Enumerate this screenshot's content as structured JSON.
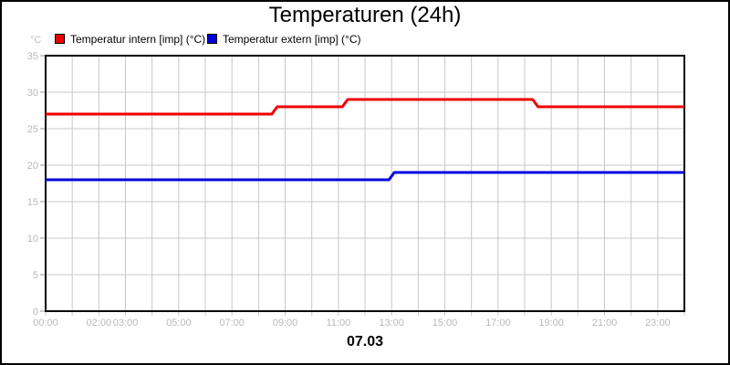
{
  "title": "Temperaturen (24h)",
  "y_axis_unit": "°C",
  "date_label": "07.03",
  "legend": {
    "items": [
      {
        "label": "Temperatur intern [imp] (°C)",
        "color": "#ee0000"
      },
      {
        "label": "Temperatur extern [imp] (°C)",
        "color": "#0000dd"
      }
    ]
  },
  "chart_data": {
    "type": "line",
    "style": "step",
    "title": "Temperaturen (24h)",
    "xlabel": "07.03",
    "ylabel": "°C",
    "x_unit": "time (hours)",
    "xlim": [
      0,
      24
    ],
    "ylim": [
      0,
      35
    ],
    "y_ticks": [
      0,
      5,
      10,
      15,
      20,
      25,
      30,
      35
    ],
    "x_gridline_every_hours": 1,
    "grid": true,
    "legend_position": "top-left",
    "x_tick_labels": [
      {
        "hour": 0,
        "label": "00:00"
      },
      {
        "hour": 2,
        "label": "02:00"
      },
      {
        "hour": 3,
        "label": "03:00"
      },
      {
        "hour": 5,
        "label": "05:00"
      },
      {
        "hour": 7,
        "label": "07:00"
      },
      {
        "hour": 9,
        "label": "09:00"
      },
      {
        "hour": 11,
        "label": "11:00"
      },
      {
        "hour": 13,
        "label": "13:00"
      },
      {
        "hour": 15,
        "label": "15:00"
      },
      {
        "hour": 17,
        "label": "17:00"
      },
      {
        "hour": 19,
        "label": "19:00"
      },
      {
        "hour": 21,
        "label": "21:00"
      },
      {
        "hour": 23,
        "label": "23:00"
      }
    ],
    "series": [
      {
        "name": "Temperatur intern [imp] (°C)",
        "color": "#ee0000",
        "points_hour_degC": [
          [
            0,
            27
          ],
          [
            8.5,
            27
          ],
          [
            8.7,
            28
          ],
          [
            11.15,
            28
          ],
          [
            11.35,
            29
          ],
          [
            18.3,
            29
          ],
          [
            18.5,
            28
          ],
          [
            24,
            28
          ]
        ]
      },
      {
        "name": "Temperatur extern [imp] (°C)",
        "color": "#0000dd",
        "points_hour_degC": [
          [
            0,
            18
          ],
          [
            12.9,
            18
          ],
          [
            13.1,
            19
          ],
          [
            24,
            19
          ]
        ]
      }
    ],
    "colors": {
      "grid": "#c8c8c8",
      "tick_labels": "#b9b9b9",
      "axis_frame": "#000000",
      "outer_border": "#000000",
      "background": "#ffffff"
    }
  }
}
